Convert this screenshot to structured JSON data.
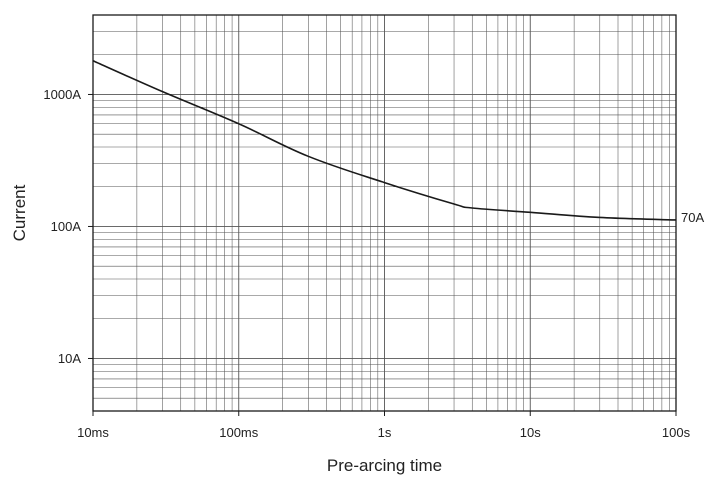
{
  "chart_data": {
    "type": "line",
    "title": "",
    "xlabel": "Pre-arcing time",
    "ylabel": "Current",
    "x_scale": "log",
    "y_scale": "log",
    "xlim": [
      "10ms",
      "100s"
    ],
    "ylim": [
      4,
      4000
    ],
    "grid": true,
    "x_ticks": [
      "10ms",
      "100ms",
      "1s",
      "10s",
      "100s"
    ],
    "y_ticks": [
      "10A",
      "100A",
      "1000A"
    ],
    "series": [
      {
        "label": "70A",
        "x": [
          "10ms",
          "30ms",
          "100ms",
          "300ms",
          "1s",
          "3s",
          "4s",
          "10s",
          "30s",
          "100s"
        ],
        "y": [
          1800,
          1050,
          600,
          340,
          215,
          148,
          138,
          128,
          117,
          112
        ]
      }
    ],
    "colors": {
      "line": "#1a1a1a",
      "grid": "#555555",
      "frame": "#1a1a1a"
    }
  }
}
